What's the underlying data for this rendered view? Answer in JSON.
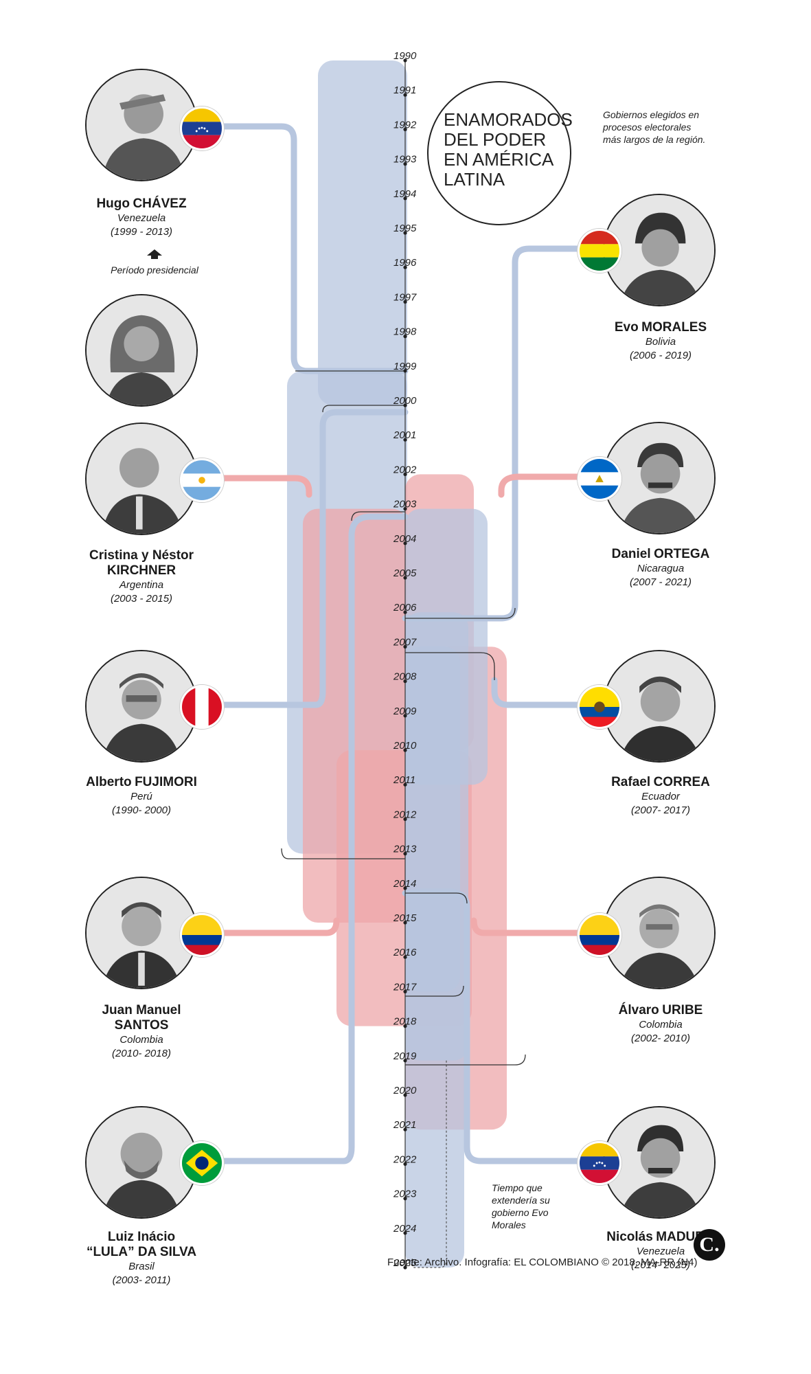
{
  "title": "ENAMORADOS DEL PODER EN AMÉRICA LATINA",
  "title_lines": [
    "ENAMORADOS",
    "DEL PODER",
    "EN AMÉRICA",
    "LATINA"
  ],
  "subtitle": "Gobiernos elegidos en procesos electorales más largos de la región.",
  "legend": {
    "label": "Período presidencial",
    "icon": "arrow-up-icon"
  },
  "note": "Tiempo que extendería su gobierno Evo Morales",
  "source": "Fuente: Archivo. Infografía: EL COLOMBIANO © 2018. MA-RR (N4)",
  "logo": "C.",
  "colors": {
    "band_blue": "#b7c6df",
    "band_red": "#eda7a9",
    "band_overlap": "#b6a2b5",
    "line": "#b7c6df",
    "line_red": "#f0aaab",
    "dark_line": "#333333"
  },
  "years": [
    "1990",
    "1991",
    "1992",
    "1993",
    "1994",
    "1995",
    "1996",
    "1997",
    "1998",
    "1999",
    "2000",
    "2001",
    "2002",
    "2003",
    "2004",
    "2005",
    "2006",
    "2007",
    "2008",
    "2009",
    "2010",
    "2011",
    "2012",
    "2013",
    "2014",
    "2015",
    "2016",
    "2017",
    "2018",
    "2019",
    "2020",
    "2021",
    "2022",
    "2023",
    "2024",
    "2025"
  ],
  "leaders": [
    {
      "id": "chavez",
      "name": "Hugo",
      "surname": "CHÁVEZ",
      "country": "Venezuela",
      "period": "(1999 - 2013)",
      "flag": "venezuela",
      "portrait": "chavez-portrait",
      "start": 1999,
      "end": 2013,
      "color": "blue"
    },
    {
      "id": "kirchner",
      "name": "Cristina y Néstor",
      "surname": "KIRCHNER",
      "country": "Argentina",
      "period": "(2003 - 2015)",
      "flag": "argentina",
      "portrait": "kirchner-portrait",
      "start": 2003,
      "end": 2015,
      "color": "red"
    },
    {
      "id": "fujimori",
      "name": "Alberto",
      "surname": "FUJIMORI",
      "country": "Perú",
      "period": "(1990- 2000)",
      "flag": "peru",
      "portrait": "fujimori-portrait",
      "start": 1990,
      "end": 2000,
      "color": "blue"
    },
    {
      "id": "santos",
      "name": "Juan Manuel",
      "surname": "SANTOS",
      "country": "Colombia",
      "period": "(2010- 2018)",
      "flag": "colombia",
      "portrait": "santos-portrait",
      "start": 2010,
      "end": 2018,
      "color": "red"
    },
    {
      "id": "lula",
      "name": "Luiz Inácio",
      "surname": "“LULA” DA SILVA",
      "country": "Brasil",
      "period": "(2003- 2011)",
      "flag": "brasil",
      "portrait": "lula-portrait",
      "start": 2003,
      "end": 2011,
      "color": "blue"
    },
    {
      "id": "morales",
      "name": "Evo",
      "surname": "MORALES",
      "country": "Bolivia",
      "period": "(2006 - 2019)",
      "flag": "bolivia",
      "portrait": "morales-portrait",
      "start": 2006,
      "end": 2019,
      "extended": 2025,
      "color": "blue"
    },
    {
      "id": "ortega",
      "name": "Daniel",
      "surname": "ORTEGA",
      "country": "Nicaragua",
      "period": "(2007 - 2021)",
      "flag": "nicaragua",
      "portrait": "ortega-portrait",
      "start": 2007,
      "end": 2021,
      "color": "red"
    },
    {
      "id": "correa",
      "name": "Rafael",
      "surname": "CORREA",
      "country": "Ecuador",
      "period": "(2007- 2017)",
      "flag": "ecuador",
      "portrait": "correa-portrait",
      "start": 2007,
      "end": 2017,
      "color": "blue"
    },
    {
      "id": "uribe",
      "name": "Álvaro",
      "surname": "URIBE",
      "country": "Colombia",
      "period": "(2002- 2010)",
      "flag": "colombia",
      "portrait": "uribe-portrait",
      "start": 2002,
      "end": 2010,
      "color": "red"
    },
    {
      "id": "maduro",
      "name": "Nicolás",
      "surname": "MADURO",
      "country": "Venezuela",
      "period": "(2014- 2025)",
      "flag": "venezuela",
      "portrait": "maduro-portrait",
      "start": 2014,
      "end": 2025,
      "color": "blue"
    }
  ]
}
